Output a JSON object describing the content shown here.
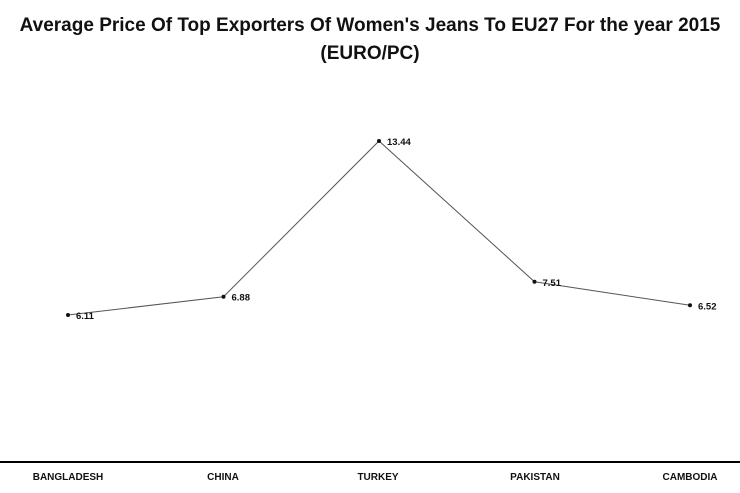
{
  "chart_data": {
    "type": "line",
    "title": "Average Price Of Top Exporters Of Women's Jeans To EU27 For the year 2015 (EURO/PC)",
    "categories": [
      "BANGLADESH",
      "CHINA",
      "TURKEY",
      "PAKISTAN",
      "CAMBODIA"
    ],
    "values": [
      6.11,
      6.88,
      13.44,
      7.51,
      6.52
    ],
    "data_labels": [
      "6.11",
      "6.88",
      "13.44",
      "7.51",
      "6.52"
    ],
    "xlabel": "",
    "ylabel": "",
    "grid": false,
    "legend": "none",
    "line_color": "#555555",
    "marker_color": "#111111"
  }
}
